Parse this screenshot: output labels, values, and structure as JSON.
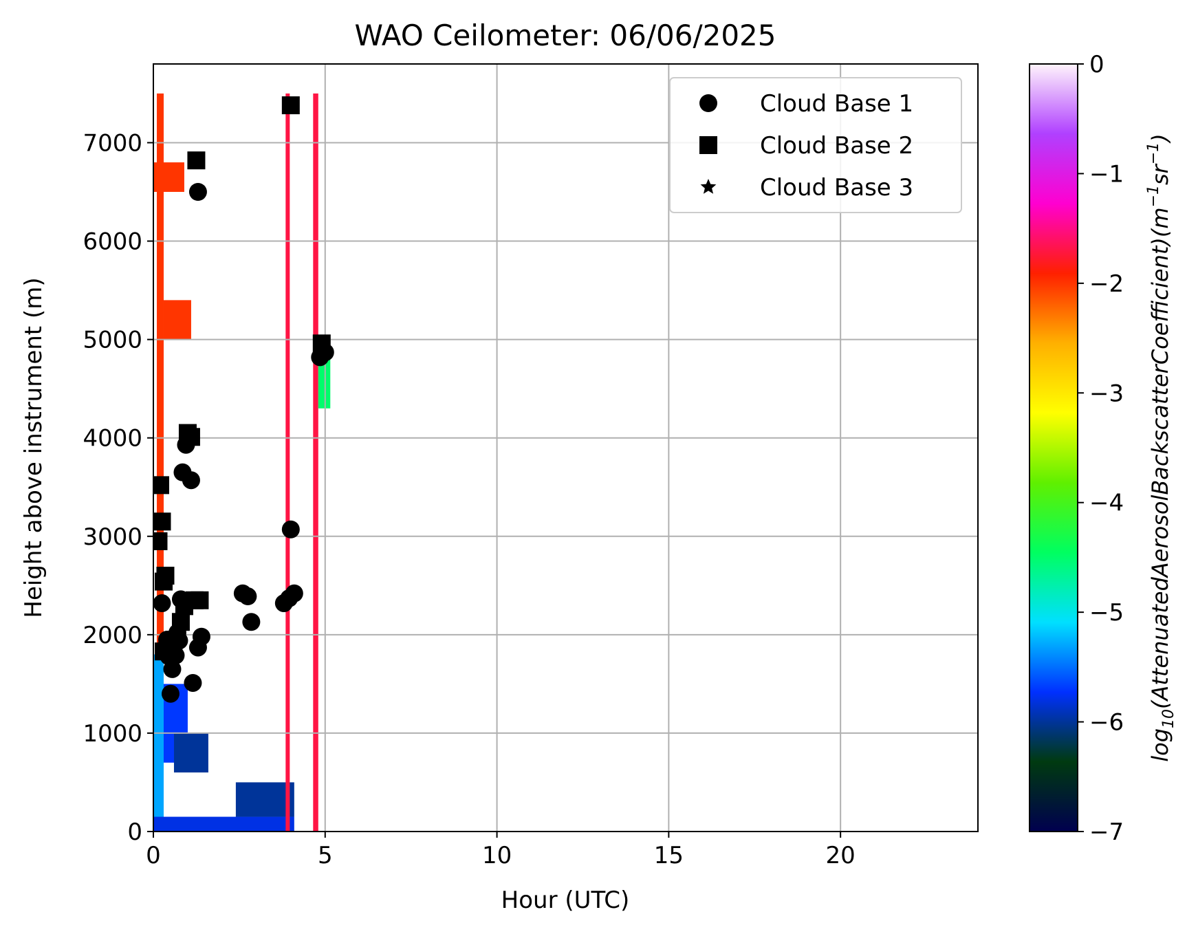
{
  "chart_data": {
    "type": "heatmap",
    "title": "WAO Ceilometer: 06/06/2025",
    "xlabel": "Hour (UTC)",
    "ylabel": "Height above instrument (m)",
    "xlim": [
      0,
      24
    ],
    "ylim": [
      0,
      7800
    ],
    "xticks": [
      "0",
      "5",
      "10",
      "15",
      "20"
    ],
    "yticks": [
      "0",
      "1000",
      "2000",
      "3000",
      "4000",
      "5000",
      "6000",
      "7000"
    ],
    "grid": true,
    "legend_placement": "top-right",
    "colorbar": {
      "label": "log10(AttenuatedAerosolBackscatterCoefficient)(m⁻¹sr⁻¹)",
      "range": [
        -7,
        0
      ],
      "ticks": [
        "0",
        "−1",
        "−2",
        "−3",
        "−4",
        "−5",
        "−6",
        "−7"
      ],
      "colormap_stops": [
        "#00004f",
        "#003a10",
        "#0030ff",
        "#00e0ff",
        "#00ff60",
        "#60f000",
        "#ffff00",
        "#ffb000",
        "#ff2000",
        "#ff00d0",
        "#b040ff",
        "#fff4fb"
      ]
    },
    "backscatter_regions": [
      {
        "x0": 0.0,
        "x1": 0.3,
        "y0": 0,
        "y1": 1800,
        "value": -5.3
      },
      {
        "x0": 0.3,
        "x1": 1.0,
        "y0": 700,
        "y1": 1500,
        "value": -5.7
      },
      {
        "x0": 0.6,
        "x1": 1.6,
        "y0": 600,
        "y1": 1000,
        "value": -6.0
      },
      {
        "x0": 0.0,
        "x1": 4.1,
        "y0": 0,
        "y1": 150,
        "value": -5.8
      },
      {
        "x0": 2.4,
        "x1": 4.1,
        "y0": 150,
        "y1": 500,
        "value": -6.0
      },
      {
        "x0": 0.1,
        "x1": 0.3,
        "y0": 1800,
        "y1": 7500,
        "value": -2.0
      },
      {
        "x0": 0.3,
        "x1": 1.1,
        "y0": 5000,
        "y1": 5400,
        "value": -2.0
      },
      {
        "x0": 0.0,
        "x1": 0.9,
        "y0": 6500,
        "y1": 6800,
        "value": -2.0
      },
      {
        "x0": 3.85,
        "x1": 3.97,
        "y0": 0,
        "y1": 7500,
        "value": -1.7
      },
      {
        "x0": 4.65,
        "x1": 4.8,
        "y0": 0,
        "y1": 7500,
        "value": -1.7
      },
      {
        "x0": 4.8,
        "x1": 5.15,
        "y0": 4300,
        "y1": 4900,
        "value": -4.5
      }
    ],
    "series": [
      {
        "name": "Cloud Base 1",
        "marker": "circle",
        "points": [
          [
            0.25,
            2320
          ],
          [
            0.35,
            1870
          ],
          [
            0.4,
            1950
          ],
          [
            0.45,
            1780
          ],
          [
            0.5,
            1400
          ],
          [
            0.55,
            1650
          ],
          [
            0.6,
            1880
          ],
          [
            0.65,
            1790
          ],
          [
            0.7,
            2020
          ],
          [
            0.75,
            1940
          ],
          [
            0.8,
            2360
          ],
          [
            0.85,
            3650
          ],
          [
            0.95,
            3930
          ],
          [
            1.1,
            3570
          ],
          [
            1.15,
            1510
          ],
          [
            1.3,
            1870
          ],
          [
            1.4,
            1980
          ],
          [
            1.3,
            6500
          ],
          [
            2.6,
            2420
          ],
          [
            2.75,
            2390
          ],
          [
            2.85,
            2130
          ],
          [
            3.8,
            2320
          ],
          [
            3.95,
            2370
          ],
          [
            4.0,
            3070
          ],
          [
            4.1,
            2420
          ],
          [
            4.85,
            4820
          ],
          [
            5.0,
            4870
          ]
        ]
      },
      {
        "name": "Cloud Base 2",
        "marker": "square",
        "points": [
          [
            0.15,
            2950
          ],
          [
            0.2,
            3520
          ],
          [
            0.25,
            3150
          ],
          [
            0.3,
            2540
          ],
          [
            0.3,
            1830
          ],
          [
            0.35,
            2600
          ],
          [
            0.8,
            2130
          ],
          [
            0.9,
            2290
          ],
          [
            1.0,
            4050
          ],
          [
            1.1,
            4010
          ],
          [
            1.2,
            2350
          ],
          [
            1.35,
            2350
          ],
          [
            1.25,
            6820
          ],
          [
            4.0,
            7380
          ],
          [
            4.9,
            4960
          ]
        ]
      },
      {
        "name": "Cloud Base 3",
        "marker": "star",
        "points": []
      }
    ]
  }
}
